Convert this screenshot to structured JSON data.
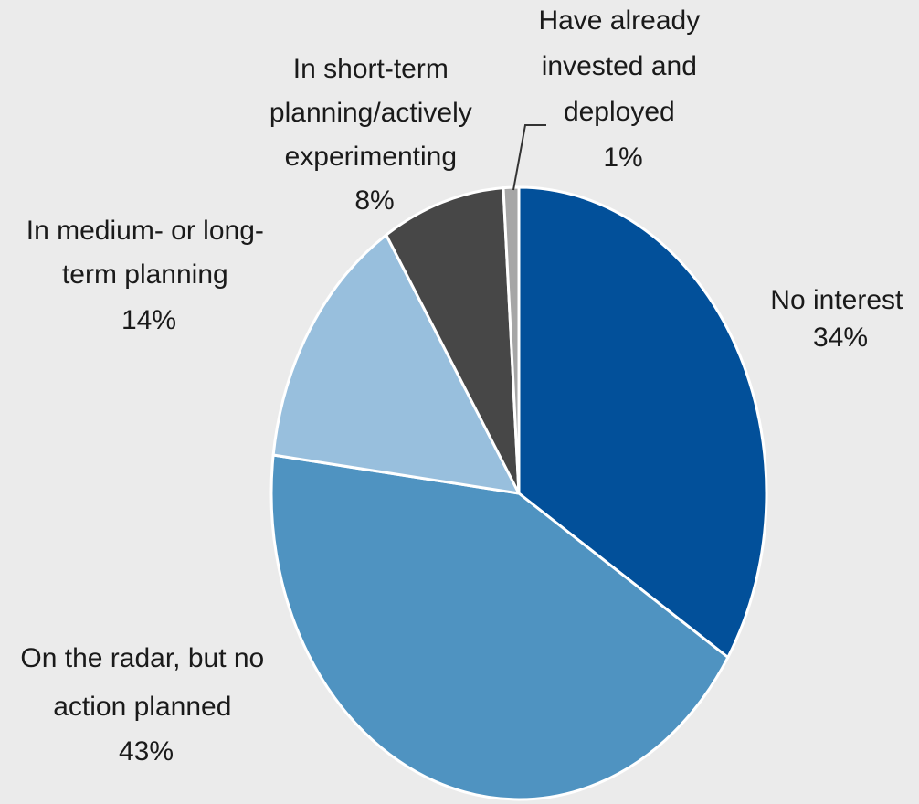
{
  "chart_data": {
    "type": "pie",
    "start": "12 o'clock",
    "direction": "clockwise",
    "slices": [
      {
        "label_lines": [
          "No interest"
        ],
        "value_text": "34%",
        "value": 34,
        "color": "#02509a"
      },
      {
        "label_lines": [
          "On the radar,  but no",
          "action planned"
        ],
        "value_text": "43%",
        "value": 43,
        "color": "#4f93c1"
      },
      {
        "label_lines": [
          "In medium- or long-",
          "term planning"
        ],
        "value_text": "14%",
        "value": 14,
        "color": "#98bfdd"
      },
      {
        "label_lines": [
          "In short-term",
          "planning/actively",
          "experimenting"
        ],
        "value_text": "8%",
        "value": 8,
        "color": "#474747"
      },
      {
        "label_lines": [
          "Have already",
          "invested and",
          "deployed"
        ],
        "value_text": "1%",
        "value": 1,
        "color": "#a6a6a6"
      }
    ]
  }
}
